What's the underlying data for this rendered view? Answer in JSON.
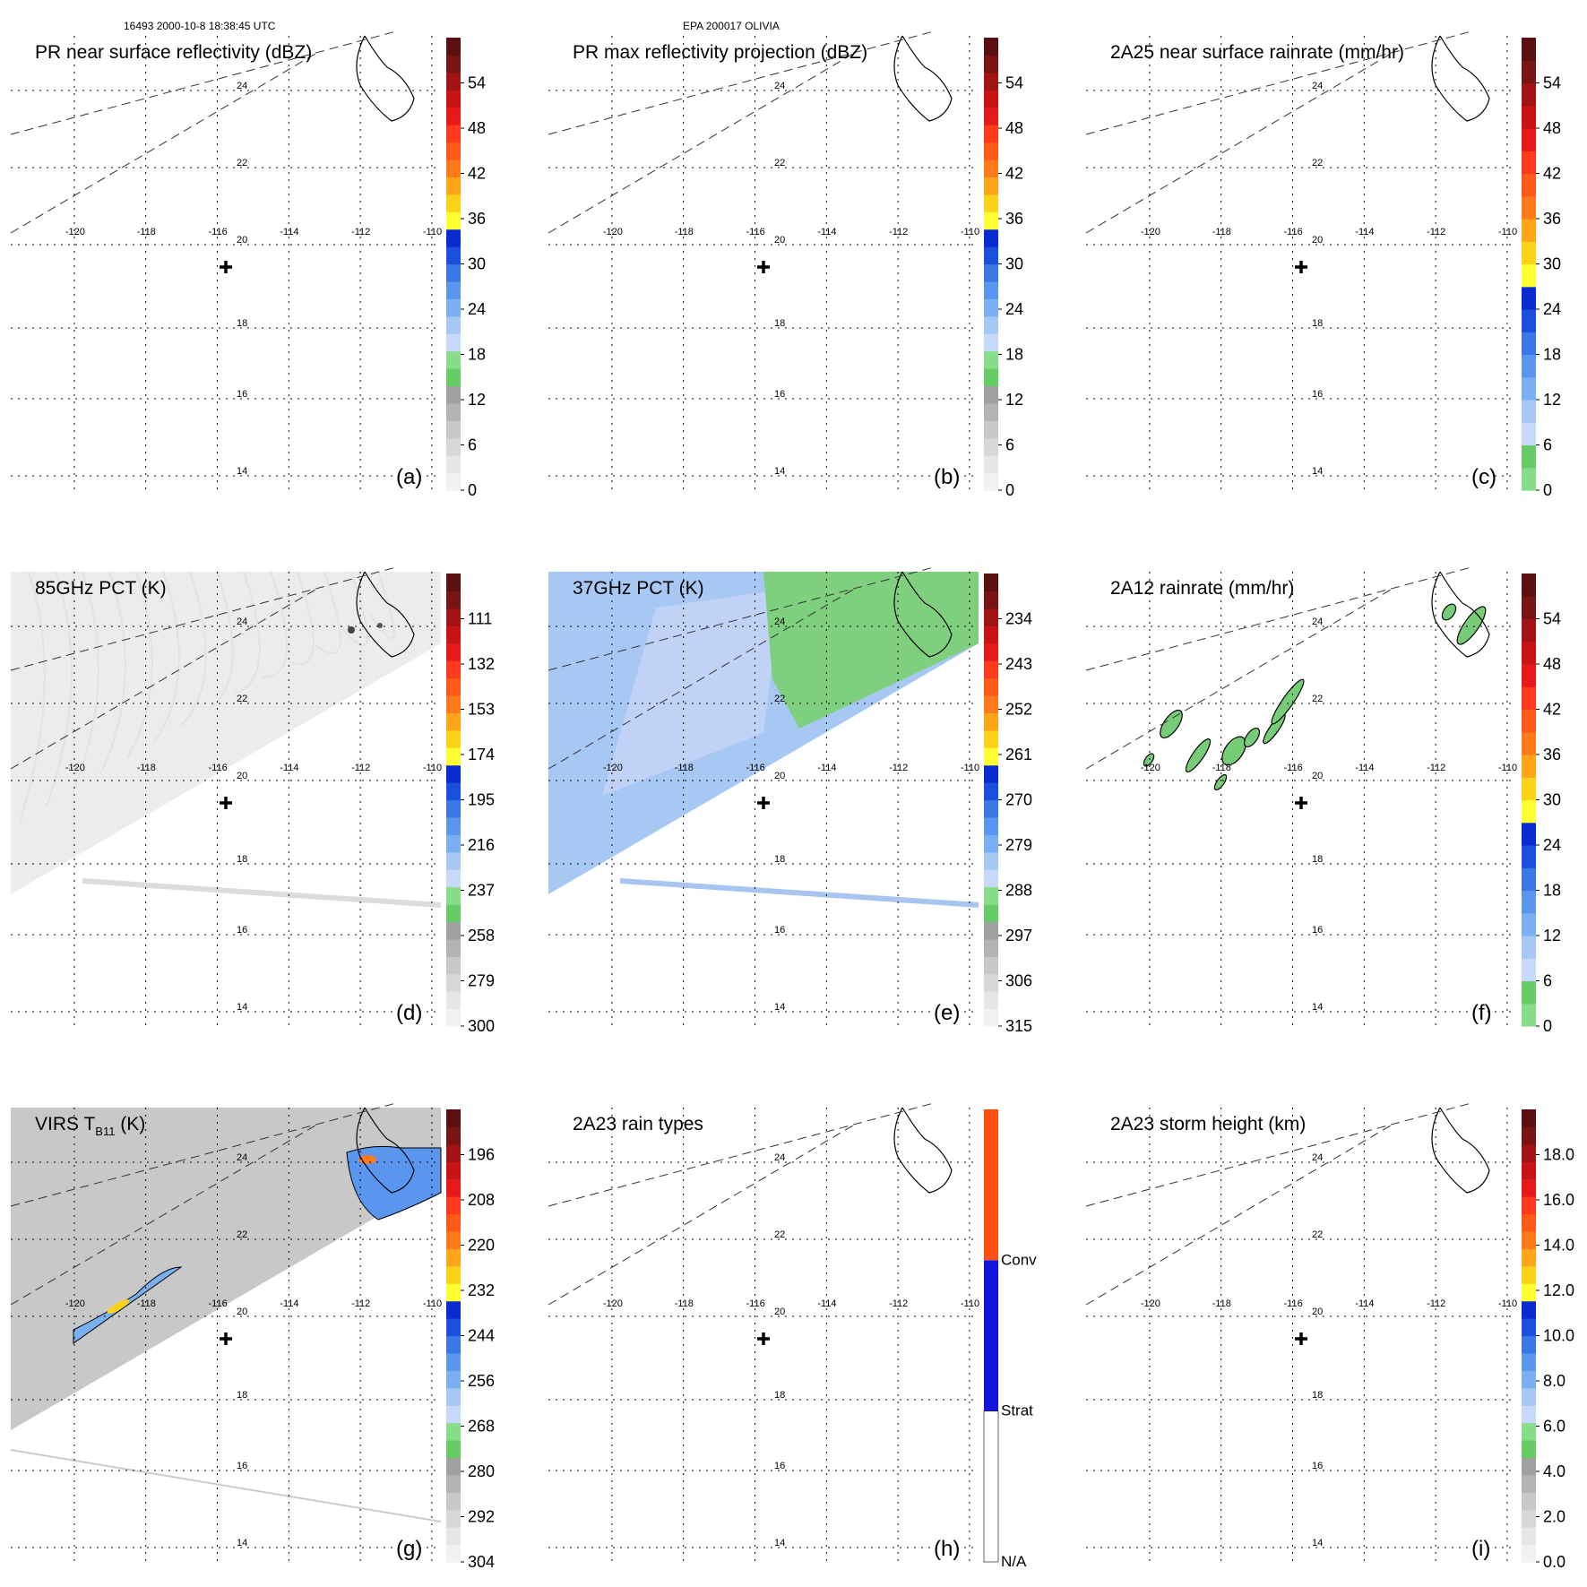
{
  "header": {
    "orbit_time": "16493 2000-10-8 18:38:45 UTC",
    "storm_id": "EPA 200017 OLIVIA"
  },
  "map": {
    "lon_labels": [
      "-120",
      "-118",
      "-116",
      "-114",
      "-112",
      "-110"
    ],
    "lat_labels": [
      "24",
      "22",
      "20",
      "18",
      "16",
      "14"
    ],
    "lon_range": [
      -121,
      -109
    ],
    "lat_range": [
      13,
      25
    ]
  },
  "panels": [
    {
      "id": "a",
      "letter": "(a)",
      "title": "PR near surface reflectivity (dBZ)",
      "field": "none",
      "colorbar": {
        "type": "dbz",
        "labels": [
          "0",
          "6",
          "12",
          "18",
          "24",
          "30",
          "36",
          "42",
          "48",
          "54"
        ]
      }
    },
    {
      "id": "b",
      "letter": "(b)",
      "title": "PR max reflectivity projection (dBZ)",
      "field": "none",
      "colorbar": {
        "type": "dbz",
        "labels": [
          "0",
          "6",
          "12",
          "18",
          "24",
          "30",
          "36",
          "42",
          "48",
          "54"
        ]
      }
    },
    {
      "id": "c",
      "letter": "(c)",
      "title": "2A25 near surface rainrate (mm/hr)",
      "field": "none",
      "colorbar": {
        "type": "rain",
        "labels": [
          "0",
          "6",
          "12",
          "18",
          "24",
          "30",
          "36",
          "42",
          "48",
          "54"
        ]
      }
    },
    {
      "id": "d",
      "letter": "(d)",
      "title": "85GHz PCT (K)",
      "field": "pct85",
      "colorbar": {
        "type": "pct",
        "labels": [
          "300",
          "279",
          "258",
          "237",
          "216",
          "195",
          "174",
          "153",
          "132",
          "111"
        ]
      }
    },
    {
      "id": "e",
      "letter": "(e)",
      "title": "37GHz PCT (K)",
      "field": "pct37",
      "colorbar": {
        "type": "pct",
        "labels": [
          "315",
          "306",
          "297",
          "288",
          "279",
          "270",
          "261",
          "252",
          "243",
          "234"
        ]
      }
    },
    {
      "id": "f",
      "letter": "(f)",
      "title": "2A12 rainrate (mm/hr)",
      "field": "rain2a12",
      "colorbar": {
        "type": "rain",
        "labels": [
          "0",
          "6",
          "12",
          "18",
          "24",
          "30",
          "36",
          "42",
          "48",
          "54"
        ]
      }
    },
    {
      "id": "g",
      "letter": "(g)",
      "title": "VIRS T",
      "title_sub": "B11",
      "title_suffix": " (K)",
      "field": "virs",
      "colorbar": {
        "type": "pct",
        "labels": [
          "304",
          "292",
          "280",
          "268",
          "256",
          "244",
          "232",
          "220",
          "208",
          "196"
        ]
      }
    },
    {
      "id": "h",
      "letter": "(h)",
      "title": "2A23 rain types",
      "field": "none",
      "colorbar": {
        "type": "raintype",
        "labels": [
          "N/A",
          "Strat",
          "Conv"
        ]
      }
    },
    {
      "id": "i",
      "letter": "(i)",
      "title": "2A23 storm height (km)",
      "field": "none",
      "colorbar": {
        "type": "height",
        "labels": [
          "0.0",
          "2.0",
          "4.0",
          "6.0",
          "8.0",
          "10.0",
          "12.0",
          "14.0",
          "16.0",
          "18.0"
        ]
      }
    }
  ],
  "colors": {
    "dbz": [
      "#f2f2f2",
      "#e6e6e6",
      "#d8d8d8",
      "#c8c8c8",
      "#b4b4b4",
      "#a0a0a0",
      "#66cc66",
      "#88dd88",
      "#c8d8f8",
      "#a6c8f5",
      "#7ab0f2",
      "#5a96ee",
      "#3a78e6",
      "#1a50dc",
      "#0a2ad2",
      "#ffff33",
      "#ffd21a",
      "#ffa51a",
      "#ff7a1a",
      "#ff5a1a",
      "#ff3a1a",
      "#e61a1a",
      "#c81414",
      "#a01414",
      "#781414",
      "#5a1010"
    ],
    "rain": [
      "#88dd88",
      "#66cc66",
      "#c8d8f8",
      "#a6c8f5",
      "#7ab0f2",
      "#5a96ee",
      "#3a78e6",
      "#1a50dc",
      "#0a2ad2",
      "#ffff33",
      "#ffd21a",
      "#ffa51a",
      "#ff7a1a",
      "#ff5a1a",
      "#ff3a1a",
      "#e61a1a",
      "#c81414",
      "#a01414",
      "#781414",
      "#5a1010"
    ],
    "pct85_base": "#ececec",
    "pct37_blue": "#a8c8f4",
    "pct37_lav": "#c6d4f6",
    "pct37_green": "#7ed07e",
    "rain2a12_green": "#77cc77",
    "virs_gray": "#c8c8c8",
    "raintype": {
      "na": "#ffffff",
      "strat": "#1414dc",
      "conv": "#ff5014"
    }
  }
}
